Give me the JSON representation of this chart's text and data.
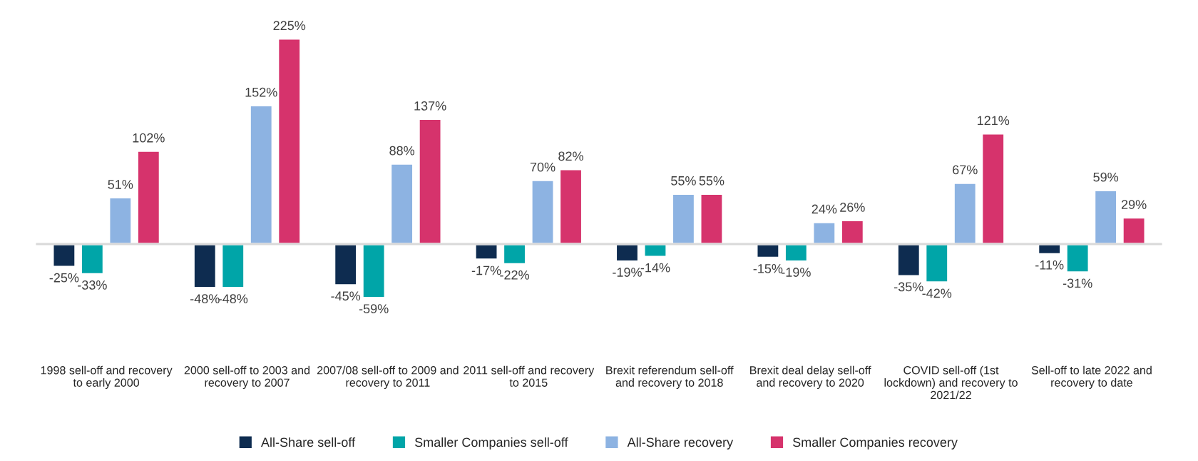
{
  "chart_data": {
    "type": "bar",
    "categories": [
      "1998 sell-off and recovery to early 2000",
      "2000 sell-off to 2003 and recovery to 2007",
      "2007/08 sell-off to 2009 and recovery to 2011",
      "2011 sell-off and recovery to 2015",
      "Brexit referendum sell-off and recovery to 2018",
      "Brexit deal delay sell-off and recovery to 2020",
      "COVID sell-off (1st lockdown) and recovery to 2021/22",
      "Sell-off to late 2022 and recovery to date"
    ],
    "series": [
      {
        "name": "All-Share sell-off",
        "color": "#0e2c50",
        "values": [
          -25,
          -48,
          -45,
          -17,
          -19,
          -15,
          -35,
          -11
        ],
        "value_labels": [
          "-25%",
          "-48%",
          "-45%",
          "-17%",
          "-19%",
          "-15%",
          "-35%",
          "-11%"
        ]
      },
      {
        "name": "Smaller Companies sell-off",
        "color": "#00a5a8",
        "values": [
          -33,
          -48,
          -59,
          -22,
          -14,
          -19,
          -42,
          -31
        ],
        "value_labels": [
          "-33%",
          "-48%",
          "-59%",
          "-22%",
          "-14%",
          "-19%",
          "-42%",
          "-31%"
        ]
      },
      {
        "name": "All-Share recovery",
        "color": "#8db3e2",
        "values": [
          51,
          152,
          88,
          70,
          55,
          24,
          67,
          59
        ],
        "value_labels": [
          "51%",
          "152%",
          "88%",
          "70%",
          "55%",
          "24%",
          "67%",
          "59%"
        ]
      },
      {
        "name": "Smaller Companies recovery",
        "color": "#d6336c",
        "values": [
          102,
          225,
          137,
          82,
          55,
          26,
          121,
          29
        ],
        "value_labels": [
          "102%",
          "225%",
          "137%",
          "82%",
          "55%",
          "26%",
          "121%",
          "29%"
        ]
      }
    ],
    "legend": "bottom",
    "grid": false
  }
}
